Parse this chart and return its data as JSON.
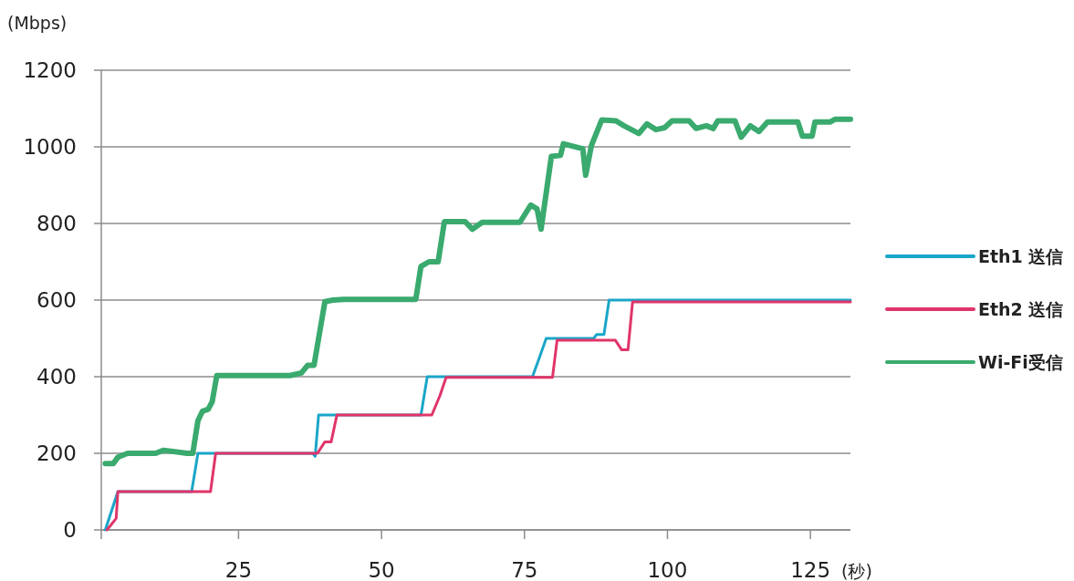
{
  "chart_data": {
    "type": "line",
    "ylabel": "(Mbps)",
    "xlabel": "(秒)",
    "xlim": [
      1,
      132
    ],
    "ylim": [
      0,
      1200
    ],
    "xticks": [
      25,
      50,
      75,
      100,
      125
    ],
    "yticks": [
      0,
      200,
      400,
      600,
      800,
      1000,
      1200
    ],
    "grid": "y",
    "legend": "right",
    "series": [
      {
        "name": "Eth1 送信",
        "color": "#1aa6c8",
        "x": [
          1.7,
          3.9,
          16.8,
          17.9,
          38,
          38.4,
          39,
          56.9,
          58,
          76.4,
          77.5,
          78.8,
          87.1,
          87.6,
          88.9,
          89.8,
          132
        ],
        "values": [
          0,
          100,
          100,
          200,
          200,
          192,
          300,
          300,
          400,
          400,
          445,
          500,
          500,
          510,
          510,
          600,
          600
        ]
      },
      {
        "name": "Eth2 送信",
        "color": "#e0356a",
        "x": [
          2,
          3.6,
          3.9,
          20.1,
          21,
          38.8,
          40.1,
          41.2,
          42.2,
          58.8,
          60.2,
          61.3,
          79.9,
          80.7,
          90.9,
          92,
          93.1,
          93.9,
          132
        ],
        "values": [
          0,
          30,
          100,
          100,
          200,
          200,
          230,
          230,
          300,
          300,
          350,
          398,
          398,
          495,
          495,
          470,
          470,
          595,
          595
        ]
      },
      {
        "name": "Wi-Fi受信",
        "color": "#3aaa6e",
        "x": [
          1.7,
          3.1,
          3.9,
          5.6,
          10.5,
          11.9,
          16,
          17,
          17.9,
          18.7,
          19.7,
          20.4,
          21.2,
          34,
          36,
          37.1,
          38.2,
          40.1,
          41.5,
          43.4,
          56,
          56.9,
          58.3,
          59.9,
          61,
          64.6,
          65.9,
          67.6,
          74.2,
          76.1,
          77.2,
          77.9,
          79.7,
          81.3,
          81.8,
          85.2,
          85.7,
          86.7,
          88.5,
          91,
          92.4,
          95,
          96.4,
          98,
          99.5,
          100.8,
          103.8,
          105,
          106.8,
          108,
          108.8,
          111.8,
          112.9,
          114.5,
          116,
          117.5,
          122.8,
          123.6,
          125.3,
          125.8,
          128.5,
          129.3,
          132
        ],
        "values": [
          173,
          173,
          190,
          200,
          200,
          208,
          200,
          200,
          285,
          310,
          315,
          335,
          403,
          403,
          410,
          430,
          430,
          596,
          600,
          602,
          602,
          688,
          700,
          700,
          805,
          805,
          785,
          803,
          803,
          848,
          838,
          785,
          975,
          978,
          1008,
          995,
          926,
          1003,
          1070,
          1068,
          1055,
          1035,
          1060,
          1045,
          1050,
          1068,
          1068,
          1048,
          1055,
          1048,
          1068,
          1068,
          1025,
          1055,
          1040,
          1065,
          1065,
          1028,
          1028,
          1065,
          1065,
          1072,
          1072
        ]
      }
    ]
  }
}
